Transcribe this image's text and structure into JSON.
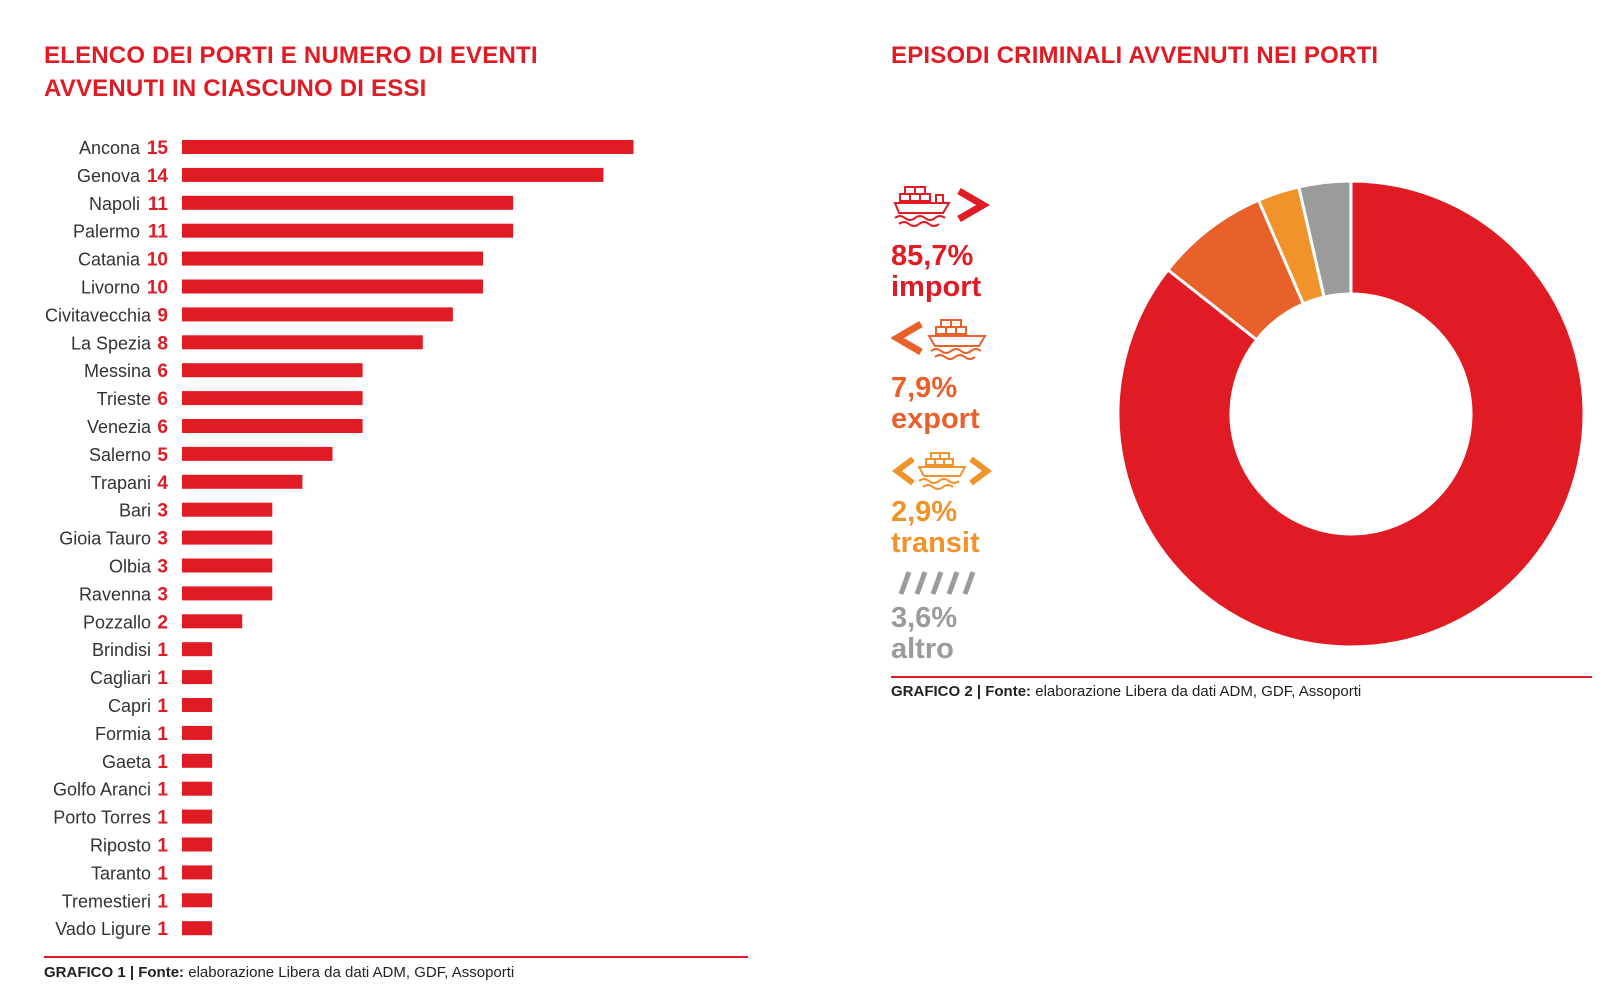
{
  "chart_data": [
    {
      "type": "bar",
      "orientation": "horizontal",
      "title": "ELENCO DEI PORTI E NUMERO DI EVENTI AVVENUTI IN CIASCUNO DI ESSI",
      "title_lines": [
        "ELENCO DEI PORTI E NUMERO DI EVENTI",
        "AVVENUTI IN CIASCUNO DI ESSI"
      ],
      "categories": [
        "Ancona",
        "Genova",
        "Napoli",
        "Palermo",
        "Catania",
        "Livorno",
        "Civitavecchia",
        "La Spezia",
        "Messina",
        "Trieste",
        "Venezia",
        "Salerno",
        "Trapani",
        "Bari",
        "Gioia Tauro",
        "Olbia",
        "Ravenna",
        "Pozzallo",
        "Brindisi",
        "Cagliari",
        "Capri",
        "Formia",
        "Gaeta",
        "Golfo Aranci",
        "Porto Torres",
        "Riposto",
        "Taranto",
        "Tremestieri",
        "Vado Ligure"
      ],
      "values": [
        15,
        14,
        11,
        11,
        10,
        10,
        9,
        8,
        6,
        6,
        6,
        5,
        4,
        3,
        3,
        3,
        3,
        2,
        1,
        1,
        1,
        1,
        1,
        1,
        1,
        1,
        1,
        1,
        1
      ],
      "color": "#e01b24",
      "caption": {
        "label": "GRAFICO 1",
        "sep": "|",
        "source_label": "Fonte:",
        "source_text": "elaborazione Libera da dati ADM, GDF, Assoporti"
      }
    },
    {
      "type": "pie",
      "donut": true,
      "title": "EPISODI CRIMINALI AVVENUTI NEI PORTI",
      "slices": [
        {
          "label": "import",
          "value": 85.7,
          "display": "85,7%",
          "color": "#e01b24",
          "icon": "ship-import-icon"
        },
        {
          "label": "export",
          "value": 7.9,
          "display": "7,9%",
          "color": "#e8602a",
          "icon": "ship-export-icon"
        },
        {
          "label": "transit",
          "value": 2.9,
          "display": "2,9%",
          "color": "#f0932a",
          "icon": "ship-transit-icon"
        },
        {
          "label": "altro",
          "value": 3.6,
          "display": "3,6%",
          "color": "#9b9b9b",
          "icon": "slashes-icon"
        }
      ],
      "caption": {
        "label": "GRAFICO 2",
        "sep": "|",
        "source_label": "Fonte:",
        "source_text": "elaborazione Libera da dati ADM, GDF, Assoporti"
      }
    }
  ]
}
